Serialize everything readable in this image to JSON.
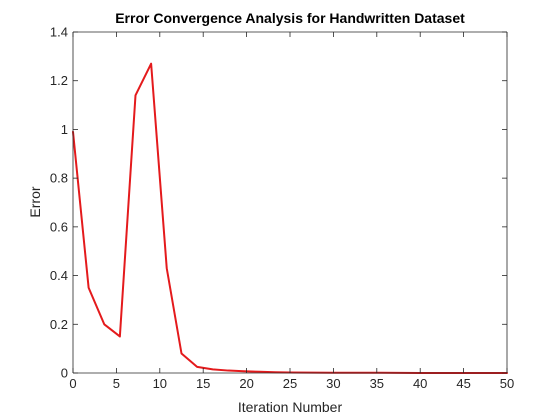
{
  "chart_data": {
    "type": "line",
    "title": "Error Convergence Analysis for Handwritten Dataset",
    "xlabel": "Iteration Number",
    "ylabel": "Error",
    "xlim": [
      0,
      50
    ],
    "ylim": [
      0,
      1.4
    ],
    "xticks": [
      "0",
      "5",
      "10",
      "15",
      "20",
      "25",
      "30",
      "35",
      "40",
      "45",
      "50"
    ],
    "yticks": [
      "0",
      "0.2",
      "0.4",
      "0.6",
      "0.8",
      "1",
      "1.2",
      "1.4"
    ],
    "grid": false,
    "series": [
      {
        "color": "#e41a1c",
        "x": [
          0,
          1.8,
          3.6,
          5.4,
          7.2,
          9.0,
          10.8,
          12.5,
          14.3,
          16.1,
          17.9,
          19.7,
          21.5,
          23.3,
          25,
          30,
          35,
          40,
          45,
          50
        ],
        "y": [
          0.99,
          0.35,
          0.2,
          0.15,
          1.14,
          1.27,
          0.43,
          0.08,
          0.025,
          0.015,
          0.01,
          0.007,
          0.005,
          0.003,
          0.002,
          0.001,
          0.001,
          0.0,
          0.0,
          0.0
        ]
      }
    ]
  }
}
